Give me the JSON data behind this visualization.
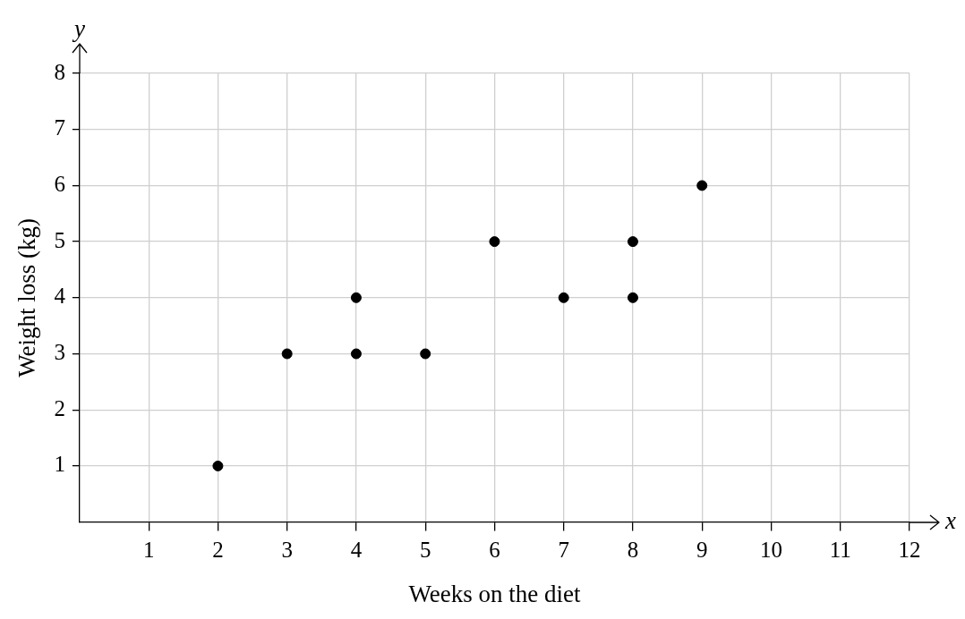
{
  "chart_data": {
    "type": "scatter",
    "xlabel": "Weeks on the diet",
    "ylabel": "Weight loss (kg)",
    "annotations": [
      "x",
      "y"
    ],
    "series": [
      {
        "color": "#000000",
        "x": [
          2,
          3,
          4,
          4,
          5,
          6,
          7,
          8,
          8,
          9
        ],
        "values": [
          1,
          3,
          3,
          4,
          3,
          5,
          4,
          4,
          5,
          6
        ]
      }
    ],
    "xlim": [
      0,
      12
    ],
    "xticks": [
      1,
      2,
      3,
      4,
      5,
      6,
      7,
      8,
      9,
      10,
      11,
      12
    ],
    "ylim": [
      0,
      8
    ],
    "yticks": [
      1,
      2,
      3,
      4,
      5,
      6,
      7,
      8
    ],
    "grid": true,
    "legend": false,
    "marker": "circle"
  }
}
